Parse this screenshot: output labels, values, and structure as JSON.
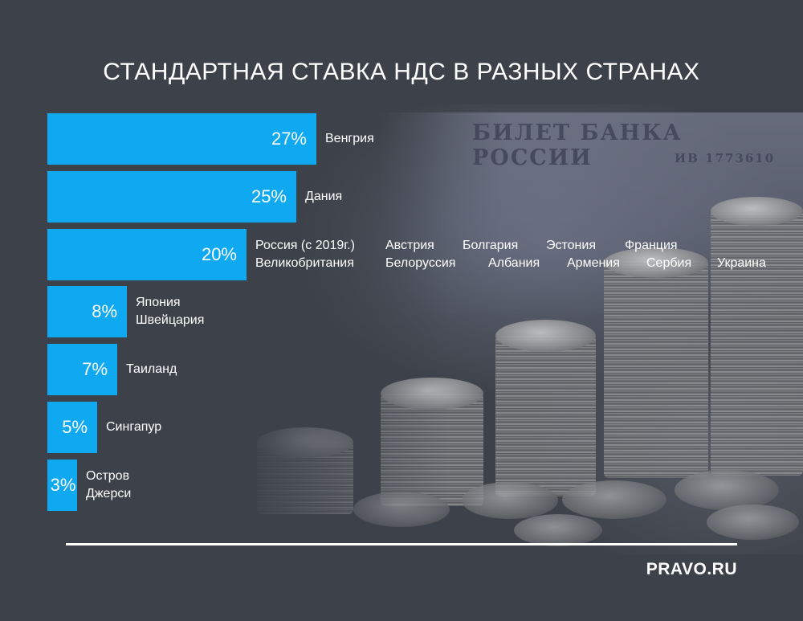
{
  "title": "СТАНДАРТНАЯ СТАВКА НДС В РАЗНЫХ СТРАНАХ",
  "brand": "PRAVO.RU",
  "background": {
    "banknote_text": "БИЛЕТ БАНКА РОССИИ",
    "serial": "ИВ 1773610"
  },
  "colors": {
    "background": "#3d424a",
    "bar": "#0fa9f2",
    "text": "#ffffff"
  },
  "chart_data": {
    "type": "bar",
    "orientation": "horizontal",
    "title": "СТАНДАРТНАЯ СТАВКА НДС В РАЗНЫХ СТРАНАХ",
    "xlim": [
      0,
      27
    ],
    "grid": false,
    "legend": "none",
    "values": [
      27,
      25,
      20,
      8,
      7,
      5,
      3
    ],
    "value_labels": [
      "27%",
      "25%",
      "20%",
      "8%",
      "7%",
      "5%",
      "3%"
    ],
    "categories": [
      "Венгрия",
      "Дания",
      "Россия (с 2019г.), Австрия, Болгария, Эстония, Франция, Великобритания, Белоруссия, Албания, Армения, Сербия, Украина",
      "Япония, Швейцария",
      "Таиланд",
      "Сингапур",
      "Остров Джерси"
    ],
    "label_lines": [
      [
        [
          "Венгрия"
        ]
      ],
      [
        [
          "Дания"
        ]
      ],
      [
        [
          "Россия (с 2019г.)",
          "Австрия",
          "Болгария",
          "Эстония",
          "Франция"
        ],
        [
          "Великобритания",
          "Белоруссия",
          "Албания",
          "Армения",
          "Сербия",
          "Украина"
        ]
      ],
      [
        [
          "Япония"
        ],
        [
          "Швейцария"
        ]
      ],
      [
        [
          "Таиланд"
        ]
      ],
      [
        [
          "Сингапур"
        ]
      ],
      [
        [
          "Остров"
        ],
        [
          "Джерси"
        ]
      ]
    ]
  }
}
